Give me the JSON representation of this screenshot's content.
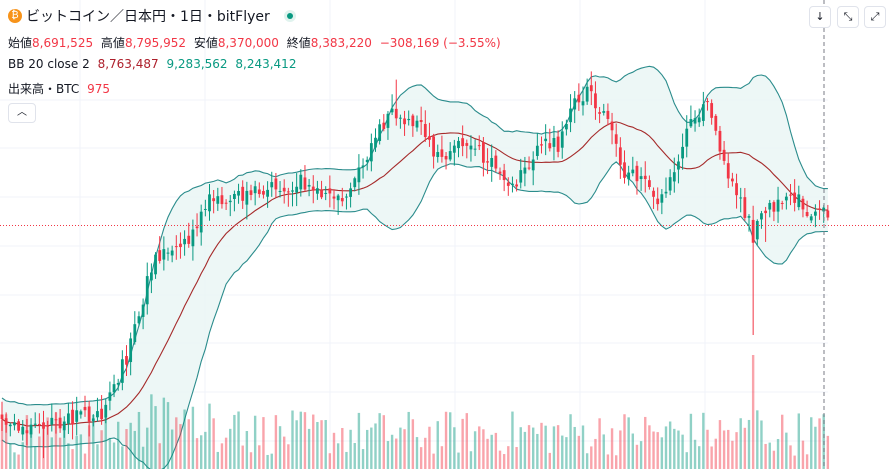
{
  "header": {
    "title": "ビットコイン／日本円・1日・bitFlyer",
    "open_label": "始値",
    "open_value": "8,691,525",
    "high_label": "高値",
    "high_value": "8,795,952",
    "low_label": "安値",
    "low_value": "8,370,000",
    "close_label": "終値",
    "close_value": "8,383,220",
    "change_value": "−308,169 (−3.55%)"
  },
  "bb_legend": {
    "label": "BB 20 close 2",
    "basis": "8,763,487",
    "upper": "9,283,562",
    "lower": "8,243,412"
  },
  "volume_legend": {
    "label": "出来高・BTC",
    "value": "975"
  },
  "icons": {
    "coin": "bitcoin-icon",
    "live": "live-status-icon",
    "collapse": "chevron-up-icon",
    "down": "arrow-down-icon",
    "compress": "compress-icon",
    "expand": "expand-icon"
  },
  "colors": {
    "up": "#089981",
    "down": "#f23645",
    "band": "#2b8c8c",
    "basis": "#a52a2a",
    "fill": "#e8f5f4",
    "price_line": "#f23645"
  },
  "chart_data": {
    "type": "candlestick",
    "series": "BTC/JPY daily",
    "ylim": [
      6900000,
      9600000
    ],
    "close_anchors": [
      [
        0,
        7000000
      ],
      [
        8,
        6980000
      ],
      [
        16,
        7040000
      ],
      [
        24,
        7080000
      ],
      [
        30,
        7450000
      ],
      [
        36,
        8050000
      ],
      [
        40,
        8180000
      ],
      [
        46,
        8250000
      ],
      [
        50,
        8500000
      ],
      [
        54,
        8460000
      ],
      [
        60,
        8560000
      ],
      [
        66,
        8590000
      ],
      [
        72,
        8620000
      ],
      [
        77,
        8540000
      ],
      [
        82,
        8470000
      ],
      [
        88,
        8800000
      ],
      [
        94,
        9100000
      ],
      [
        100,
        9020000
      ],
      [
        106,
        8750000
      ],
      [
        112,
        8900000
      ],
      [
        118,
        8730000
      ],
      [
        124,
        8600000
      ],
      [
        129,
        8860000
      ],
      [
        134,
        8860000
      ],
      [
        138,
        9200000
      ],
      [
        142,
        9200000
      ],
      [
        146,
        9000000
      ],
      [
        150,
        8700000
      ],
      [
        154,
        8660000
      ],
      [
        158,
        8440000
      ],
      [
        162,
        8660000
      ],
      [
        166,
        9040000
      ],
      [
        170,
        9110000
      ],
      [
        174,
        8740000
      ],
      [
        178,
        8480000
      ],
      [
        181,
        8270000
      ],
      [
        183,
        8430000
      ],
      [
        186,
        8450000
      ],
      [
        190,
        8560000
      ],
      [
        194,
        8420000
      ],
      [
        197,
        8420000
      ]
    ],
    "last_close": 8383220,
    "volume_max_btc": 4500
  }
}
